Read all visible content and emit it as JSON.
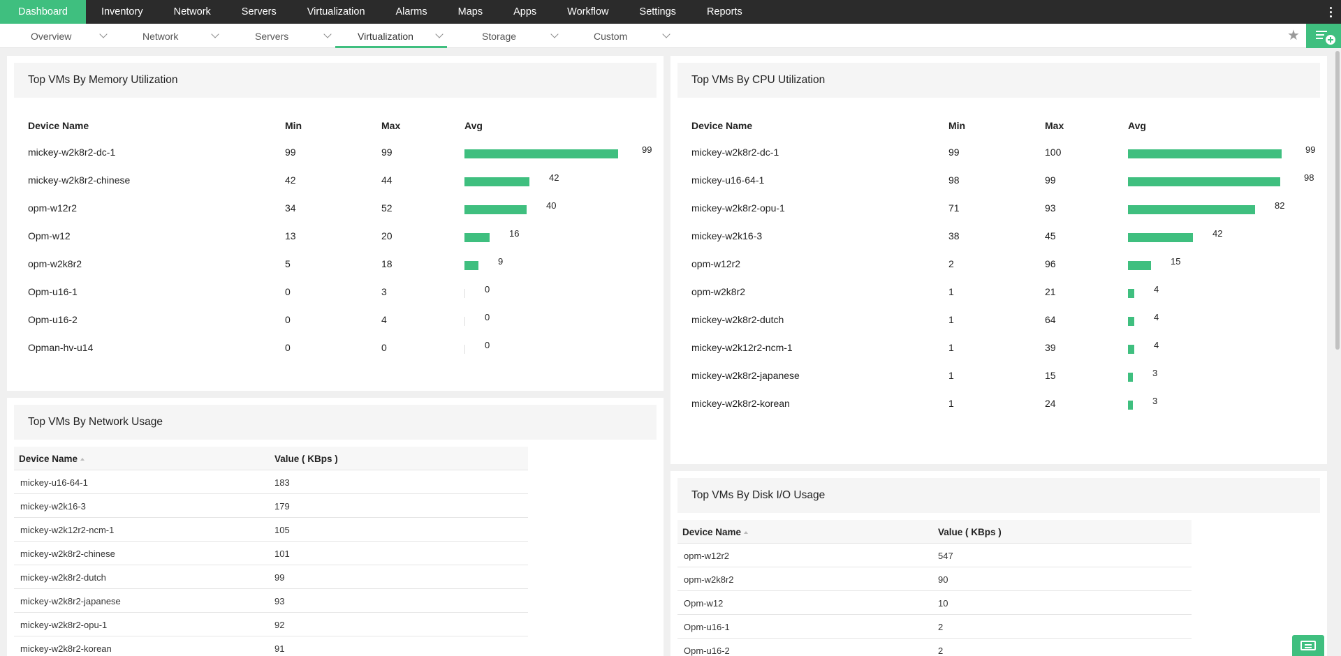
{
  "topnav": {
    "items": [
      "Dashboard",
      "Inventory",
      "Network",
      "Servers",
      "Virtualization",
      "Alarms",
      "Maps",
      "Apps",
      "Workflow",
      "Settings",
      "Reports"
    ],
    "active": 0
  },
  "subnav": {
    "tabs": [
      "Overview",
      "Network",
      "Servers",
      "Virtualization",
      "Storage",
      "Custom"
    ],
    "active": 3
  },
  "memory": {
    "title": "Top VMs By Memory Utilization",
    "columns": [
      "Device Name",
      "Min",
      "Max",
      "Avg"
    ],
    "rows": [
      {
        "name": "mickey-w2k8r2-dc-1",
        "min": "99",
        "max": "99",
        "avg": 99
      },
      {
        "name": "mickey-w2k8r2-chinese",
        "min": "42",
        "max": "44",
        "avg": 42
      },
      {
        "name": "opm-w12r2",
        "min": "34",
        "max": "52",
        "avg": 40
      },
      {
        "name": "Opm-w12",
        "min": "13",
        "max": "20",
        "avg": 16
      },
      {
        "name": "opm-w2k8r2",
        "min": "5",
        "max": "18",
        "avg": 9
      },
      {
        "name": "Opm-u16-1",
        "min": "0",
        "max": "3",
        "avg": 0
      },
      {
        "name": "Opm-u16-2",
        "min": "0",
        "max": "4",
        "avg": 0
      },
      {
        "name": "Opman-hv-u14",
        "min": "0",
        "max": "0",
        "avg": 0
      }
    ]
  },
  "cpu": {
    "title": "Top VMs By CPU Utilization",
    "columns": [
      "Device Name",
      "Min",
      "Max",
      "Avg"
    ],
    "rows": [
      {
        "name": "mickey-w2k8r2-dc-1",
        "min": "99",
        "max": "100",
        "avg": 99
      },
      {
        "name": "mickey-u16-64-1",
        "min": "98",
        "max": "99",
        "avg": 98
      },
      {
        "name": "mickey-w2k8r2-opu-1",
        "min": "71",
        "max": "93",
        "avg": 82
      },
      {
        "name": "mickey-w2k16-3",
        "min": "38",
        "max": "45",
        "avg": 42
      },
      {
        "name": "opm-w12r2",
        "min": "2",
        "max": "96",
        "avg": 15
      },
      {
        "name": "opm-w2k8r2",
        "min": "1",
        "max": "21",
        "avg": 4
      },
      {
        "name": "mickey-w2k8r2-dutch",
        "min": "1",
        "max": "64",
        "avg": 4
      },
      {
        "name": "mickey-w2k12r2-ncm-1",
        "min": "1",
        "max": "39",
        "avg": 4
      },
      {
        "name": "mickey-w2k8r2-japanese",
        "min": "1",
        "max": "15",
        "avg": 3
      },
      {
        "name": "mickey-w2k8r2-korean",
        "min": "1",
        "max": "24",
        "avg": 3
      }
    ]
  },
  "network": {
    "title": "Top VMs By Network Usage",
    "columns": [
      "Device Name",
      "Value ( KBps )"
    ],
    "rows": [
      {
        "name": "mickey-u16-64-1",
        "value": "183"
      },
      {
        "name": "mickey-w2k16-3",
        "value": "179"
      },
      {
        "name": "mickey-w2k12r2-ncm-1",
        "value": "105"
      },
      {
        "name": "mickey-w2k8r2-chinese",
        "value": "101"
      },
      {
        "name": "mickey-w2k8r2-dutch",
        "value": "99"
      },
      {
        "name": "mickey-w2k8r2-japanese",
        "value": "93"
      },
      {
        "name": "mickey-w2k8r2-opu-1",
        "value": "92"
      },
      {
        "name": "mickey-w2k8r2-korean",
        "value": "91"
      }
    ]
  },
  "disk": {
    "title": "Top VMs By Disk I/O Usage",
    "columns": [
      "Device Name",
      "Value ( KBps )"
    ],
    "rows": [
      {
        "name": "opm-w12r2",
        "value": "547"
      },
      {
        "name": "opm-w2k8r2",
        "value": "90"
      },
      {
        "name": "Opm-w12",
        "value": "10"
      },
      {
        "name": "Opm-u16-1",
        "value": "2"
      },
      {
        "name": "Opm-u16-2",
        "value": "2"
      }
    ]
  },
  "icons": {
    "star": "star-icon",
    "add_widget": "add-widget-icon",
    "chat": "chat-icon",
    "more": "kebab-menu-icon"
  },
  "colors": {
    "accent": "#3fbf7f",
    "topbar": "#2b2b2b"
  }
}
